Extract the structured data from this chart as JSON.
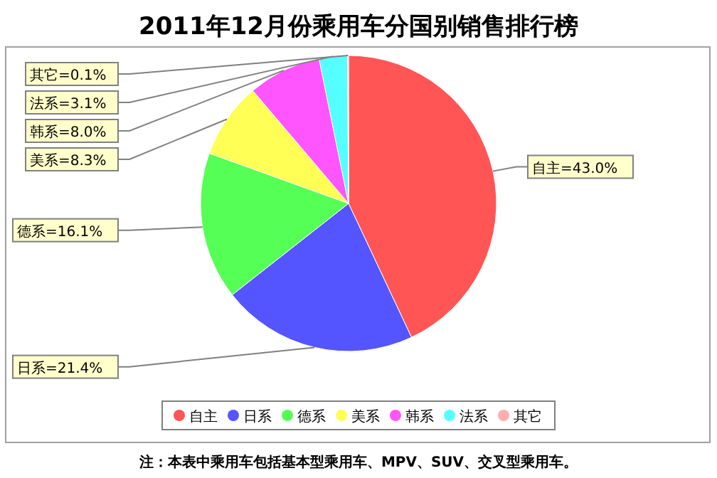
{
  "chart_data": {
    "type": "pie",
    "title": "2011年12月份乘用车分国别销售排行榜",
    "categories": [
      "自主",
      "日系",
      "德系",
      "美系",
      "韩系",
      "法系",
      "其它"
    ],
    "values": [
      43.0,
      21.4,
      16.1,
      8.3,
      8.0,
      3.1,
      0.1
    ],
    "value_labels": [
      "=43.0%",
      "=21.4%",
      "=16.1%",
      "=8.3%",
      "=8.0%",
      "=3.1%",
      "=0.1%"
    ],
    "colors": [
      "#ff5555",
      "#5555ff",
      "#55ff55",
      "#ffff55",
      "#ff55ff",
      "#55ffff",
      "#ffafaf"
    ],
    "legend": "bottom",
    "annotations": [
      "注：本表中乘用车包括基本型乘用车、MPV、SUV、交叉型乘用车。"
    ]
  }
}
